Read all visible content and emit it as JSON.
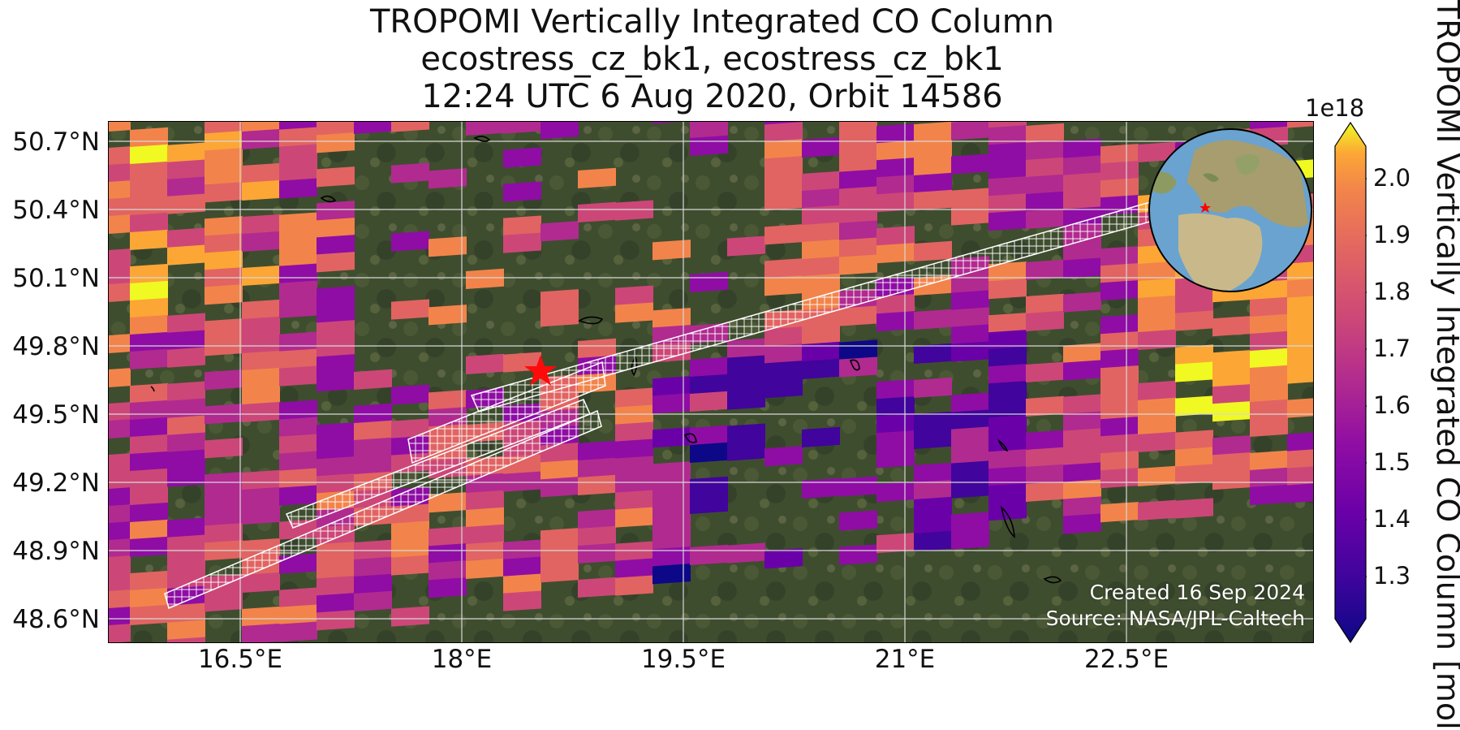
{
  "title": {
    "line1": "TROPOMI Vertically Integrated CO Column",
    "line2": "ecostress_cz_bk1, ecostress_cz_bk1",
    "line3": "12:24 UTC 6 Aug 2020, Orbit 14586"
  },
  "axes": {
    "lat_ticks": [
      "50.7°N",
      "50.4°N",
      "50.1°N",
      "49.8°N",
      "49.5°N",
      "49.2°N",
      "48.9°N",
      "48.6°N"
    ],
    "lon_ticks": [
      "16.5°E",
      "18°E",
      "19.5°E",
      "21°E",
      "22.5°E"
    ]
  },
  "colorbar": {
    "title": "TROPOMI Vertically Integrated CO Column [mol",
    "exponent": "1e18",
    "ticks": [
      "2.0",
      "1.9",
      "1.8",
      "1.7",
      "1.6",
      "1.5",
      "1.4",
      "1.3"
    ],
    "colormap": "plasma"
  },
  "credits": {
    "created": "Created 16 Sep 2024",
    "source": "Source: NASA/JPL-Caltech"
  },
  "marker": {
    "symbol": "star",
    "color": "#ff0000"
  },
  "colors": {
    "background_land": "#3d4a2e",
    "grid": "#d8d8d8",
    "swath_outline": "#ffffff",
    "globe_ocean": "#6aa3d0"
  },
  "icons": {
    "target": "star-icon",
    "locator": "globe-icon"
  }
}
